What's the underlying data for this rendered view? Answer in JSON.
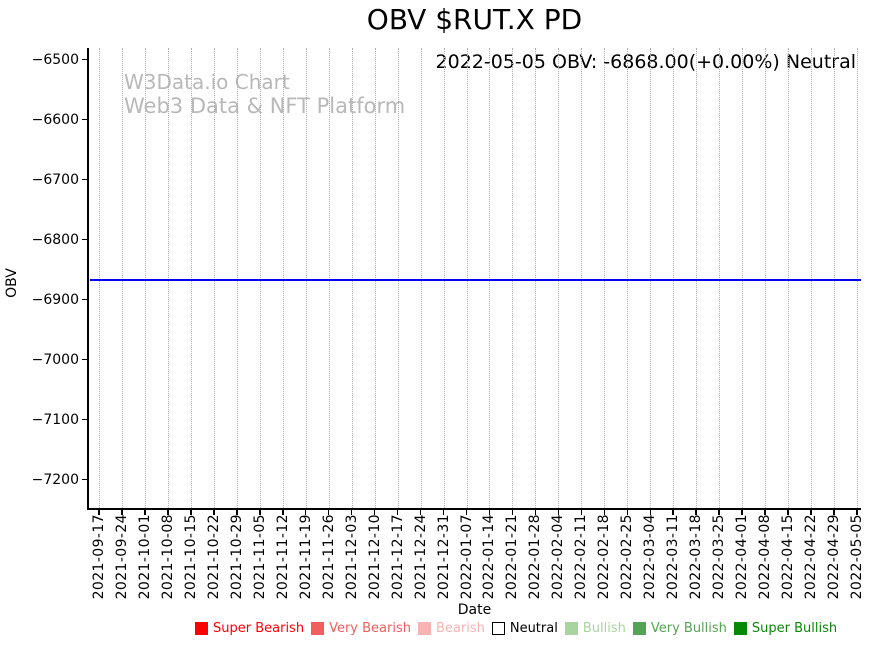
{
  "header": {
    "title": "OBV $RUT.X PD"
  },
  "annotation": {
    "text": "2022-05-05 OBV: -6868.00(+0.00%) Neutral"
  },
  "watermark": {
    "line1": "W3Data.io Chart",
    "line2": "Web3 Data & NFT Platform"
  },
  "axes": {
    "x_label": "Date",
    "y_label": "OBV",
    "y_tick_labels": [
      "−6500",
      "−6600",
      "−6700",
      "−6800",
      "−6900",
      "−7000",
      "−7100",
      "−7200"
    ]
  },
  "chart_data": {
    "type": "line",
    "title": "OBV $RUT.X PD",
    "xlabel": "Date",
    "ylabel": "OBV",
    "x": [
      "2021-09-17",
      "2021-09-24",
      "2021-10-01",
      "2021-10-08",
      "2021-10-15",
      "2021-10-22",
      "2021-10-29",
      "2021-11-05",
      "2021-11-12",
      "2021-11-19",
      "2021-11-26",
      "2021-12-03",
      "2021-12-10",
      "2021-12-17",
      "2021-12-24",
      "2021-12-31",
      "2022-01-07",
      "2022-01-14",
      "2022-01-21",
      "2022-01-28",
      "2022-02-04",
      "2022-02-11",
      "2022-02-18",
      "2022-02-25",
      "2022-03-04",
      "2022-03-11",
      "2022-03-18",
      "2022-03-25",
      "2022-04-01",
      "2022-04-08",
      "2022-04-15",
      "2022-04-22",
      "2022-04-29",
      "2022-05-05"
    ],
    "series": [
      {
        "name": "OBV",
        "color": "#0000ee",
        "values": [
          -6868,
          -6868,
          -6868,
          -6868,
          -6868,
          -6868,
          -6868,
          -6868,
          -6868,
          -6868,
          -6868,
          -6868,
          -6868,
          -6868,
          -6868,
          -6868,
          -6868,
          -6868,
          -6868,
          -6868,
          -6868,
          -6868,
          -6868,
          -6868,
          -6868,
          -6868,
          -6868,
          -6868,
          -6868,
          -6868,
          -6868,
          -6868,
          -6868,
          -6868
        ]
      }
    ],
    "y_ticks": [
      -6500,
      -6600,
      -6700,
      -6800,
      -6900,
      -7000,
      -7100,
      -7200
    ],
    "ylim": [
      -7247,
      -6481
    ],
    "grid": "vertical-dotted",
    "legend_position": "bottom",
    "latest": {
      "date": "2022-05-05",
      "obv": -6868.0,
      "change_pct": "+0.00%",
      "sentiment": "Neutral"
    }
  },
  "legend": {
    "items": [
      {
        "label": "Super Bearish",
        "color": "#ff0000",
        "text_color": "#ff0000",
        "filled": true
      },
      {
        "label": "Very Bearish",
        "color": "#f15e5e",
        "text_color": "#f15e5e",
        "filled": true
      },
      {
        "label": "Bearish",
        "color": "#f9b3b3",
        "text_color": "#f9b3b3",
        "filled": true
      },
      {
        "label": "Neutral",
        "color": "#ffffff",
        "text_color": "#000000",
        "filled": false
      },
      {
        "label": "Bullish",
        "color": "#a9d4a0",
        "text_color": "#a9d4a0",
        "filled": true
      },
      {
        "label": "Very Bullish",
        "color": "#55a455",
        "text_color": "#55a455",
        "filled": true
      },
      {
        "label": "Super Bullish",
        "color": "#068a06",
        "text_color": "#068a06",
        "filled": true
      }
    ]
  },
  "colors": {
    "line": "#0000ee",
    "grid": "#b0b0b0",
    "watermark": "#b8b8b8",
    "spine": "#000000"
  }
}
